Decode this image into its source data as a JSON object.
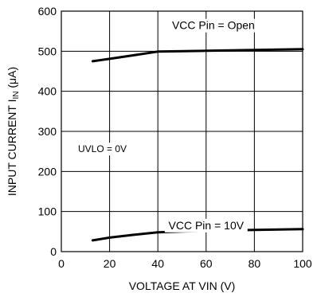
{
  "chart_data": {
    "type": "line",
    "xlabel": "VOLTAGE AT VIN (V)",
    "ylabel": "INPUT CURRENT I",
    "ylabel_sub": "IN",
    "ylabel_unit": " (μA)",
    "xlim": [
      0,
      100
    ],
    "ylim": [
      0,
      600
    ],
    "x_ticks": [
      0,
      20,
      40,
      60,
      80,
      100
    ],
    "y_ticks": [
      0,
      100,
      200,
      300,
      400,
      500,
      600
    ],
    "grid": true,
    "series": [
      {
        "name": "VCC Pin = Open",
        "x": [
          13,
          20,
          30,
          40,
          60,
          80,
          100
        ],
        "y": [
          475,
          481,
          490,
          499,
          501,
          503,
          505
        ]
      },
      {
        "name": "VCC Pin = 10V",
        "x": [
          13,
          20,
          30,
          40,
          60,
          80,
          100
        ],
        "y": [
          28,
          35,
          42,
          48,
          52,
          54,
          56
        ]
      }
    ],
    "annotations": [
      {
        "text": "UVLO = 0V"
      }
    ],
    "line_color": "#000000",
    "grid_color": "#000000"
  }
}
